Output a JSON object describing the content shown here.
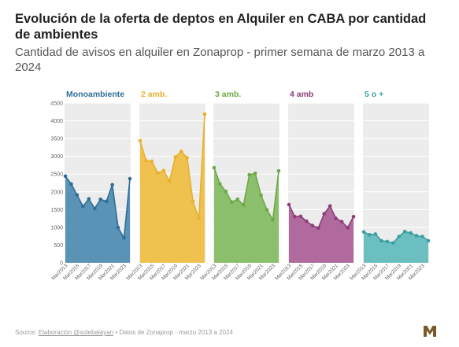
{
  "title": "Evolución de la oferta de deptos en Alquiler en CABA por cantidad de ambientes",
  "subtitle": "Cantidad de avisos en alquiler en Zonaprop - primer semana de marzo 2013 a 2024",
  "footer": {
    "source_label": "Source:",
    "source_link": "Elaboración @solebalayan",
    "data_note": "• Datos de Zonaprop - marzo 2013 a 2024"
  },
  "logo_icon": "brand-logo-icon",
  "chart_data": {
    "type": "area",
    "ylim": [
      0,
      4500
    ],
    "yticks": [
      0,
      500,
      1000,
      1500,
      2000,
      2500,
      3000,
      3500,
      4000,
      4500
    ],
    "x": [
      "Mar2013",
      "Mar2014",
      "Mar2015",
      "Mar2016",
      "Mar2017",
      "Mar2018",
      "Mar2019",
      "Mar2020",
      "Mar2021",
      "Mar2022",
      "Mar2023",
      "Mar2024"
    ],
    "xtick_labels": [
      "Mar2013",
      "Mar2015",
      "Mar2017",
      "Mar2019",
      "Mar2021",
      "Mar2023"
    ],
    "grid": true,
    "panel_background": "#ececec",
    "series": [
      {
        "name": "Monoambiente",
        "color": "#2f6e97",
        "fill": "#5b93b7",
        "values": [
          2440,
          2220,
          1910,
          1590,
          1800,
          1530,
          1790,
          1730,
          2200,
          990,
          700,
          2370
        ]
      },
      {
        "name": "2 amb.",
        "color": "#e8b12f",
        "fill": "#efc14f",
        "values": [
          3440,
          2880,
          2860,
          2530,
          2600,
          2300,
          2980,
          3140,
          2960,
          1730,
          1250,
          4190
        ]
      },
      {
        "name": "3 amb.",
        "color": "#6ea847",
        "fill": "#8cbf6b",
        "values": [
          2680,
          2220,
          2010,
          1710,
          1790,
          1630,
          2480,
          2520,
          1900,
          1490,
          1210,
          2590
        ]
      },
      {
        "name": "4 amb",
        "color": "#8b3f78",
        "fill": "#b16a9d",
        "values": [
          1640,
          1300,
          1310,
          1170,
          1050,
          980,
          1380,
          1600,
          1250,
          1160,
          990,
          1300
        ]
      },
      {
        "name": "5 o +",
        "color": "#3a9fa2",
        "fill": "#6cbfc0",
        "values": [
          870,
          790,
          810,
          620,
          600,
          560,
          740,
          880,
          840,
          760,
          740,
          620
        ]
      }
    ]
  }
}
